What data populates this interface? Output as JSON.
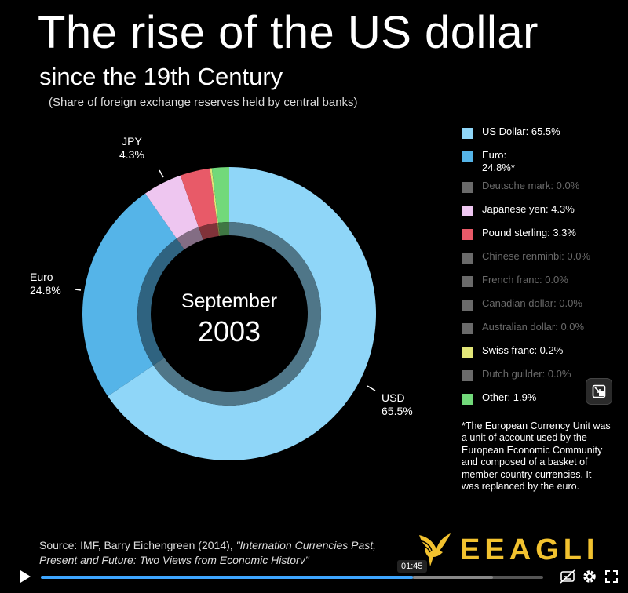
{
  "header": {
    "title": "The rise of the US dollar",
    "subtitle": "since the 19th Century",
    "note": "(Share of foreign exchange reserves held by central banks)"
  },
  "center": {
    "month": "September",
    "year": "2003"
  },
  "slice_labels": {
    "jpy": [
      "JPY",
      "4.3%"
    ],
    "euro": [
      "Euro",
      "24.8%"
    ],
    "usd": [
      "USD",
      "65.5%"
    ]
  },
  "chart_data": {
    "type": "pie",
    "title": "The rise of the US dollar",
    "subtitle": "since the 19th Century",
    "period": "September 2003",
    "unit": "%",
    "legend_position": "right",
    "slices": [
      {
        "name": "US Dollar",
        "value": 65.5,
        "color": "#8fd6f8",
        "legend_label": "US Dollar: 65.5%"
      },
      {
        "name": "Euro",
        "value": 24.8,
        "color": "#55b4e8",
        "legend_label": "Euro: 24.8%*"
      },
      {
        "name": "Deutsche mark",
        "value": 0.0,
        "color": "#6a6a6a",
        "legend_label": "Deutsche mark: 0.0%"
      },
      {
        "name": "Japanese yen",
        "value": 4.3,
        "color": "#eec6f0",
        "legend_label": "Japanese yen: 4.3%"
      },
      {
        "name": "Pound sterling",
        "value": 3.3,
        "color": "#e85a68",
        "legend_label": "Pound sterling: 3.3%"
      },
      {
        "name": "Chinese renminbi",
        "value": 0.0,
        "color": "#6a6a6a",
        "legend_label": "Chinese renminbi: 0.0%"
      },
      {
        "name": "French franc",
        "value": 0.0,
        "color": "#6a6a6a",
        "legend_label": "French franc: 0.0%"
      },
      {
        "name": "Canadian dollar",
        "value": 0.0,
        "color": "#6a6a6a",
        "legend_label": "Canadian dollar: 0.0%"
      },
      {
        "name": "Australian dollar",
        "value": 0.0,
        "color": "#6a6a6a",
        "legend_label": "Australian dollar: 0.0%"
      },
      {
        "name": "Swiss franc",
        "value": 0.2,
        "color": "#e2e678",
        "legend_label": "Swiss franc: 0.2%"
      },
      {
        "name": "Dutch guilder",
        "value": 0.0,
        "color": "#6a6a6a",
        "legend_label": "Dutch guilder: 0.0%"
      },
      {
        "name": "Other",
        "value": 1.9,
        "color": "#72d97a",
        "legend_label": "Other: 1.9%"
      }
    ]
  },
  "footnote": "*The European Currency Unit was a unit of account used by the European Economic Community and composed of a basket of member country currencies. It was replanced by the euro.",
  "source": {
    "prefix": "Source: IMF, Barry Eichengreen (2014), ",
    "title": "\"Internation Currencies Past, Present and Future: Two Views from Economic Historv\""
  },
  "brand": {
    "name": "EEAGLI",
    "color": "#f2c22f"
  },
  "player": {
    "time": "01:45",
    "progress": 0.74,
    "buffered": 0.9,
    "play_icon": "play-icon",
    "controls": [
      "subtitles-off-icon",
      "settings-icon",
      "fullscreen-icon"
    ]
  }
}
